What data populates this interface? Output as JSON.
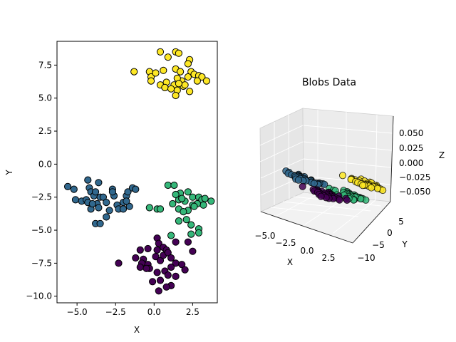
{
  "chart_data": [
    {
      "type": "scatter",
      "xlabel": "X",
      "ylabel": "Y",
      "xlim": [
        -6.3,
        4.1
      ],
      "ylim": [
        -10.5,
        9.3
      ],
      "xticks": [
        -5.0,
        -2.5,
        0.0,
        2.5
      ],
      "xtick_labels": [
        "−5.0",
        "−2.5",
        "0.0",
        "2.5"
      ],
      "yticks": [
        -10.0,
        -7.5,
        -5.0,
        -2.5,
        0.0,
        2.5,
        5.0,
        7.5
      ],
      "ytick_labels": [
        "−10.0",
        "−7.5",
        "−5.0",
        "−2.5",
        "0.0",
        "2.5",
        "5.0",
        "7.5"
      ],
      "grid": false,
      "series": [
        {
          "color": "#fde725",
          "points": [
            [
              -1.3,
              7.0
            ],
            [
              0.4,
              8.5
            ],
            [
              0.9,
              8.1
            ],
            [
              1.4,
              8.5
            ],
            [
              1.6,
              8.4
            ],
            [
              2.3,
              7.9
            ],
            [
              2.2,
              7.6
            ],
            [
              -0.3,
              7.0
            ],
            [
              -0.2,
              6.6
            ],
            [
              0.1,
              6.9
            ],
            [
              0.6,
              7.1
            ],
            [
              1.4,
              7.2
            ],
            [
              1.7,
              7.0
            ],
            [
              2.4,
              7.0
            ],
            [
              2.6,
              6.8
            ],
            [
              2.9,
              6.7
            ],
            [
              3.1,
              6.6
            ],
            [
              3.4,
              6.3
            ],
            [
              2.2,
              6.6
            ],
            [
              1.8,
              6.3
            ],
            [
              1.5,
              6.5
            ],
            [
              0.8,
              6.2
            ],
            [
              1.3,
              6.0
            ],
            [
              0.4,
              6.0
            ],
            [
              -0.2,
              6.3
            ],
            [
              0.7,
              5.8
            ],
            [
              1.1,
              5.7
            ],
            [
              1.9,
              5.9
            ],
            [
              2.0,
              6.0
            ],
            [
              2.3,
              5.5
            ],
            [
              1.5,
              5.6
            ],
            [
              1.4,
              5.2
            ],
            [
              2.8,
              6.3
            ],
            [
              1.6,
              6.1
            ]
          ]
        },
        {
          "color": "#31688e",
          "points": [
            [
              -5.6,
              -1.7
            ],
            [
              -5.2,
              -1.9
            ],
            [
              -5.1,
              -2.7
            ],
            [
              -4.7,
              -2.8
            ],
            [
              -4.4,
              -2.7
            ],
            [
              -4.3,
              -1.2
            ],
            [
              -4.2,
              -1.8
            ],
            [
              -4.1,
              -2.1
            ],
            [
              -4.3,
              -2.9
            ],
            [
              -4.1,
              -3.4
            ],
            [
              -3.9,
              -2.4
            ],
            [
              -3.8,
              -2.1
            ],
            [
              -3.6,
              -1.4
            ],
            [
              -3.5,
              -2.5
            ],
            [
              -3.7,
              -3.0
            ],
            [
              -3.6,
              -3.3
            ],
            [
              -3.3,
              -2.5
            ],
            [
              -3.1,
              -2.9
            ],
            [
              -2.9,
              -3.5
            ],
            [
              -3.1,
              -4.0
            ],
            [
              -3.8,
              -4.5
            ],
            [
              -3.5,
              -4.5
            ],
            [
              -2.7,
              -1.9
            ],
            [
              -2.6,
              -2.4
            ],
            [
              -2.4,
              -3.1
            ],
            [
              -2.3,
              -3.4
            ],
            [
              -2.0,
              -2.9
            ],
            [
              -1.8,
              -2.4
            ],
            [
              -1.7,
              -2.1
            ],
            [
              -1.6,
              -3.2
            ],
            [
              -1.4,
              -1.8
            ],
            [
              -1.2,
              -1.9
            ],
            [
              -2.7,
              -2.1
            ],
            [
              -2.0,
              -3.4
            ],
            [
              -4.0,
              -3.0
            ],
            [
              -1.8,
              -2.8
            ]
          ]
        },
        {
          "color": "#35b779",
          "points": [
            [
              0.9,
              -1.6
            ],
            [
              1.3,
              -1.6
            ],
            [
              1.7,
              -2.2
            ],
            [
              2.2,
              -2.1
            ],
            [
              2.5,
              -2.5
            ],
            [
              2.9,
              -2.5
            ],
            [
              3.1,
              -2.7
            ],
            [
              3.3,
              -2.6
            ],
            [
              3.7,
              -2.8
            ],
            [
              3.2,
              -3.1
            ],
            [
              2.8,
              -3.0
            ],
            [
              2.5,
              -3.1
            ],
            [
              2.0,
              -2.8
            ],
            [
              1.6,
              -2.7
            ],
            [
              1.4,
              -2.3
            ],
            [
              1.2,
              -3.0
            ],
            [
              1.6,
              -3.4
            ],
            [
              2.2,
              -3.5
            ],
            [
              2.6,
              -3.2
            ],
            [
              2.1,
              -4.2
            ],
            [
              2.4,
              -4.6
            ],
            [
              1.9,
              -3.6
            ],
            [
              1.6,
              -4.3
            ],
            [
              2.9,
              -4.9
            ],
            [
              2.9,
              -5.2
            ],
            [
              2.4,
              -5.3
            ],
            [
              1.1,
              -5.4
            ],
            [
              0.2,
              -3.4
            ],
            [
              0.4,
              -3.4
            ],
            [
              -0.3,
              -3.3
            ],
            [
              1.8,
              -2.6
            ]
          ]
        },
        {
          "color": "#440154",
          "points": [
            [
              -0.4,
              -6.4
            ],
            [
              0.2,
              -5.6
            ],
            [
              0.3,
              -6.0
            ],
            [
              0.6,
              -6.3
            ],
            [
              1.4,
              -5.9
            ],
            [
              2.2,
              -5.9
            ],
            [
              2.5,
              -6.6
            ],
            [
              -0.9,
              -6.5
            ],
            [
              -1.2,
              -7.1
            ],
            [
              -0.7,
              -7.2
            ],
            [
              -0.4,
              -7.6
            ],
            [
              0.1,
              -7.0
            ],
            [
              0.4,
              -7.3
            ],
            [
              0.6,
              -6.9
            ],
            [
              0.8,
              -6.5
            ],
            [
              0.9,
              -6.7
            ],
            [
              1.1,
              -7.1
            ],
            [
              1.4,
              -7.5
            ],
            [
              1.8,
              -7.6
            ],
            [
              2.0,
              -8.0
            ],
            [
              1.1,
              -7.8
            ],
            [
              0.7,
              -8.1
            ],
            [
              0.2,
              -8.2
            ],
            [
              -0.3,
              -7.9
            ],
            [
              -0.8,
              -7.5
            ],
            [
              -0.9,
              -7.8
            ],
            [
              -2.3,
              -7.5
            ],
            [
              0.4,
              -8.8
            ],
            [
              0.9,
              -8.4
            ],
            [
              1.4,
              -8.5
            ],
            [
              1.1,
              -9.2
            ],
            [
              0.8,
              -9.3
            ],
            [
              0.3,
              -9.6
            ],
            [
              -0.1,
              -8.9
            ],
            [
              -0.5,
              -7.9
            ],
            [
              0.2,
              -6.5
            ]
          ]
        }
      ]
    },
    {
      "type": "scatter-3d",
      "title": "Blobs Data",
      "xlabel": "X",
      "ylabel": "Y",
      "zlabel": "Z",
      "xticks": [
        "−5.0",
        "−2.5",
        "0.0",
        "2.5"
      ],
      "yticks": [
        "5",
        "0",
        "−5",
        "−10"
      ],
      "zticks": [
        "0.050",
        "0.025",
        "0.000",
        "−0.025",
        "−0.050"
      ],
      "xlim": [
        -6.3,
        4.1
      ],
      "ylim": [
        -10.5,
        9.3
      ],
      "zlim": [
        -0.055,
        0.055
      ],
      "grid": true,
      "note_z": "all points at z = 0"
    }
  ]
}
